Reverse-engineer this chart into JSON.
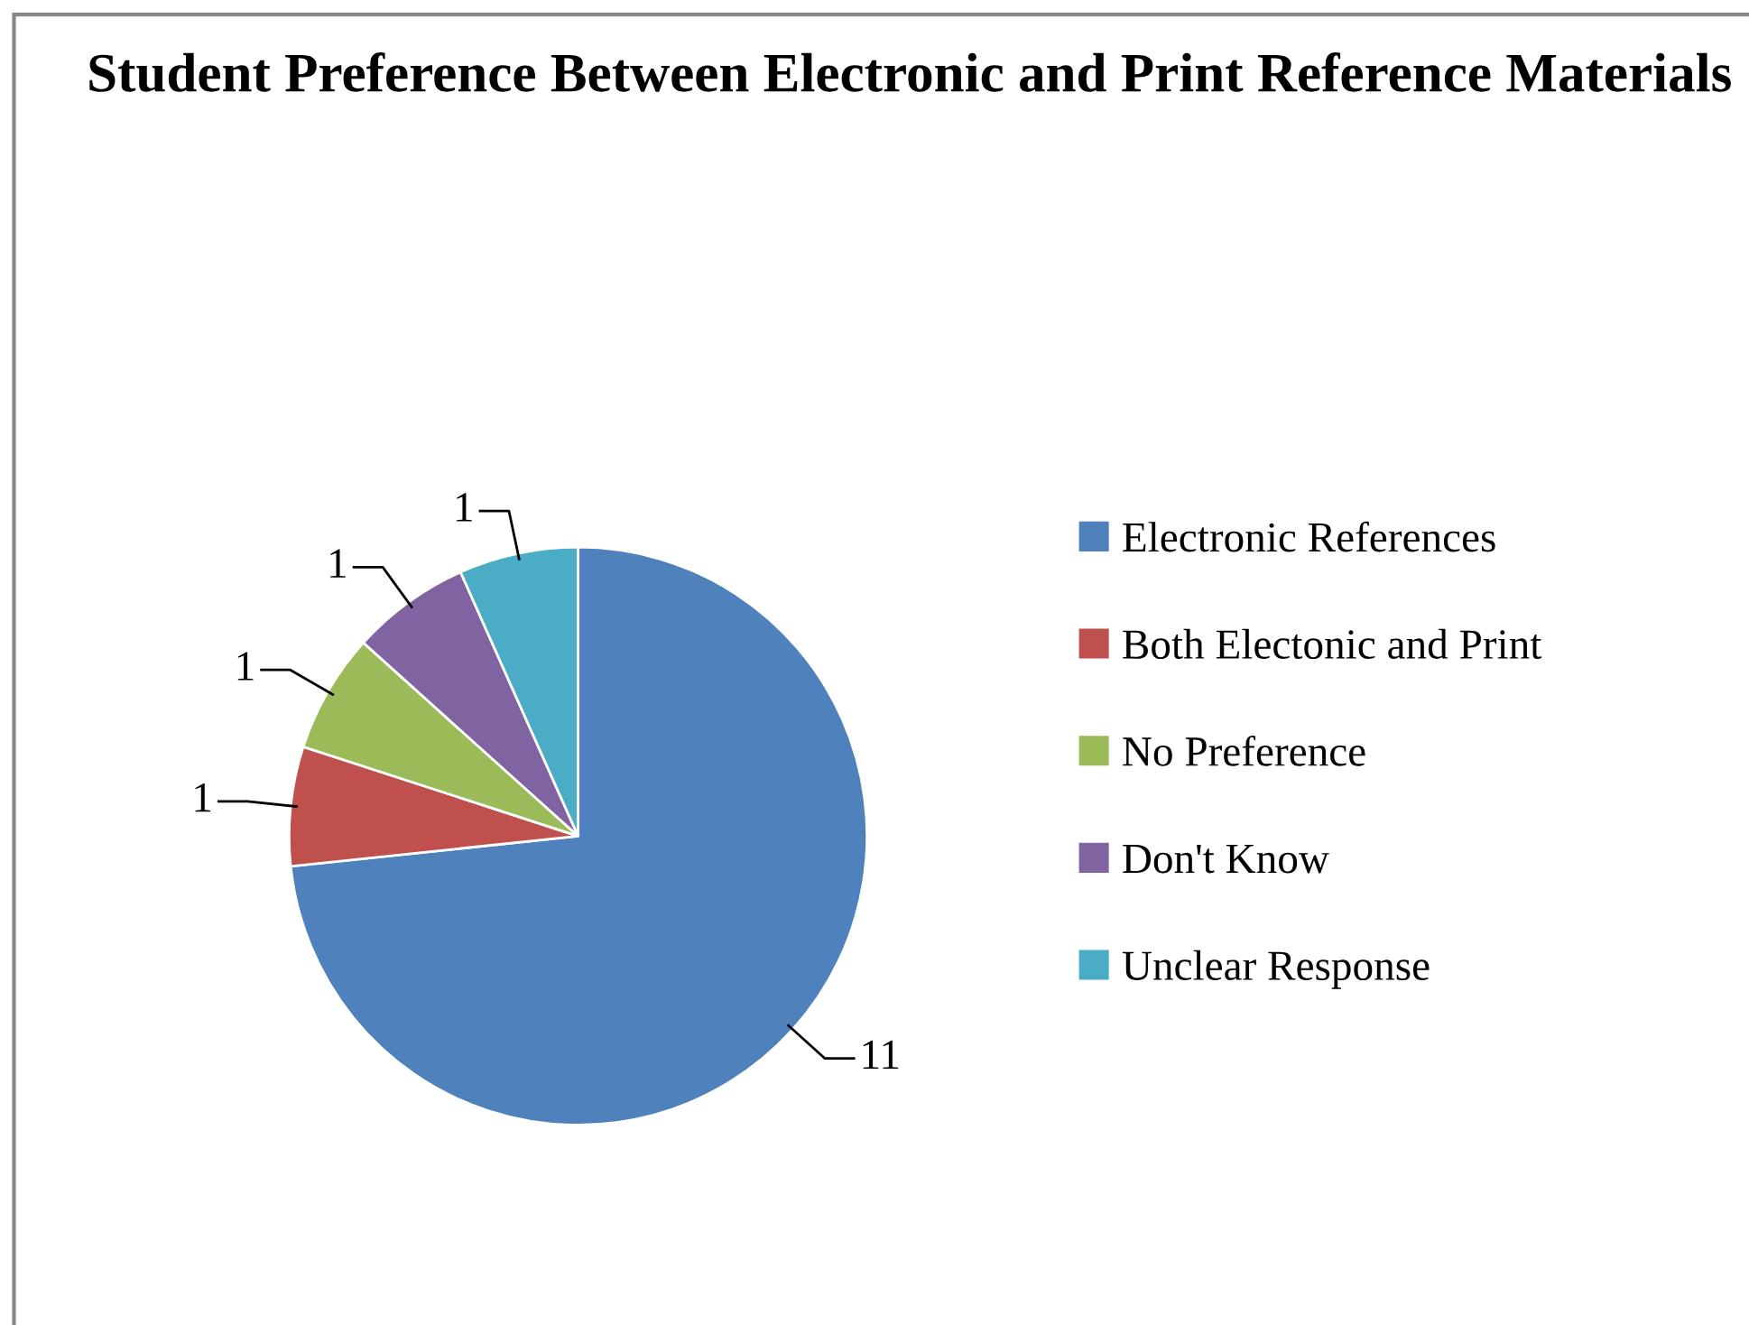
{
  "chart_data": {
    "type": "pie",
    "title": "Student Preference Between Electronic and Print Reference Materials",
    "categories": [
      "Electronic References",
      "Both Electonic and Print",
      "No Preference",
      "Don't Know",
      "Unclear Response"
    ],
    "values": [
      11,
      1,
      1,
      1,
      1
    ],
    "colors": [
      "#4f81bd",
      "#c0504d",
      "#9bbb59",
      "#8064a2",
      "#4bacc6"
    ],
    "data_labels": true,
    "legend": "right"
  }
}
